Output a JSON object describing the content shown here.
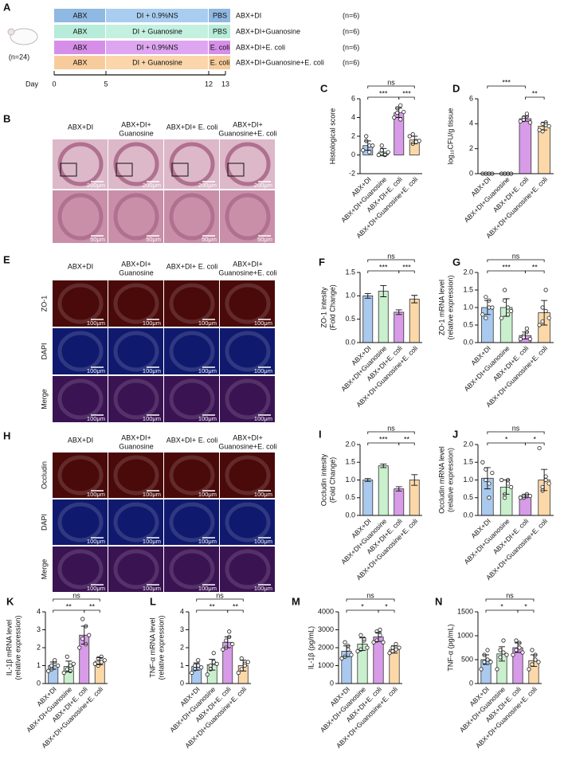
{
  "panel_a": {
    "label": "A",
    "cohort": "(n=24)",
    "axis_label": "Day",
    "days": [
      0,
      5,
      12,
      13
    ],
    "rows": [
      {
        "segments": [
          "ABX",
          "DI + 0.9%NS",
          "PBS"
        ],
        "group": "ABX+DI",
        "n": "(n=6)"
      },
      {
        "segments": [
          "ABX",
          "DI + Guanosine",
          "PBS"
        ],
        "group": "ABX+DI+Guanosine",
        "n": "(n=6)"
      },
      {
        "segments": [
          "ABX",
          "DI + 0.9%NS",
          "E. coli"
        ],
        "group": "ABX+DI+E. coli",
        "n": "(n=6)"
      },
      {
        "segments": [
          "ABX",
          "DI + Guanosine",
          "E. coli"
        ],
        "group": "ABX+DI+Guanosine+E. coli",
        "n": "(n=6)"
      }
    ]
  },
  "image_panels": [
    {
      "label": "B",
      "columns": [
        [
          "ABX+DI"
        ],
        [
          "ABX+DI+",
          "Guanosine"
        ],
        [
          "ABX+DI+ E. coli"
        ],
        [
          "ABX+DI+",
          "Guanosine+E. coli"
        ]
      ],
      "rows": [],
      "scale_bars": [
        "200μm",
        "50μm"
      ]
    },
    {
      "label": "E",
      "columns": [
        [
          "ABX+DI"
        ],
        [
          "ABX+DI+",
          "Guanosine"
        ],
        [
          "ABX+DI+ E. coli"
        ],
        [
          "ABX+DI+",
          "Guanosine+E. coli"
        ]
      ],
      "rows": [
        "ZO-1",
        "DAPI",
        "Merge"
      ],
      "scale_bars": [
        "100μm",
        "100μm",
        "100μm"
      ]
    },
    {
      "label": "H",
      "columns": [
        [
          "ABX+DI"
        ],
        [
          "ABX+DI+",
          "Guanosine"
        ],
        [
          "ABX+DI+ E. coli"
        ],
        [
          "ABX+DI+",
          "Guanosine+E. coli"
        ]
      ],
      "rows": [
        "Occludin",
        "DAPI",
        "Merge"
      ],
      "scale_bars": [
        "100μm",
        "100μm",
        "100μm"
      ]
    }
  ],
  "chart_data": [
    {
      "type": "bar",
      "label": "C",
      "ylabel": [
        "Histological score"
      ],
      "ylim": [
        -2,
        6
      ],
      "yticks": [
        -2,
        0,
        2,
        4,
        6
      ],
      "categories": [
        "ABX+DI",
        "ABX+DI+Guanosine",
        "ABX+DI+E. coli",
        "ABX+DI+Guanosine+E. coli"
      ],
      "colors": [
        "#a9c9ee",
        "#c9efcc",
        "#d79be8",
        "#fcd8a8"
      ],
      "values": [
        1.0,
        0.3,
        4.5,
        1.6
      ],
      "errors": [
        0.5,
        0.4,
        0.5,
        0.4
      ],
      "points": [
        [
          0.5,
          1.5,
          1.0,
          2.0,
          0.3,
          1.0
        ],
        [
          0,
          0.5,
          0,
          1.0,
          0,
          0.3
        ],
        [
          4.0,
          5.0,
          5.3,
          4.5,
          3.8,
          4.6
        ],
        [
          2.0,
          1.2,
          1.5,
          2.2,
          1.4,
          1.5
        ]
      ],
      "comparisons": [
        {
          "between": [
            "ABX+DI",
            "ABX+DI+Guanosine+E. coli"
          ],
          "label": "ns"
        },
        {
          "between": [
            "ABX+DI",
            "ABX+DI+E. coli"
          ],
          "label": "***"
        },
        {
          "between": [
            "ABX+DI+E. coli",
            "ABX+DI+Guanosine+E. coli"
          ],
          "label": "***"
        }
      ]
    },
    {
      "type": "bar",
      "label": "D",
      "ylabel": [
        "log₁₀CFU/g tissue"
      ],
      "ylim": [
        0,
        6
      ],
      "yticks": [
        0,
        2,
        4,
        6
      ],
      "categories": [
        "ABX+DI",
        "ABX+DI+Guanosine",
        "ABX+DI+E. coli",
        "ABX+DI+Guanosine+E. coli"
      ],
      "colors": [
        "#a9c9ee",
        "#c9efcc",
        "#d79be8",
        "#fcd8a8"
      ],
      "values": [
        0,
        0,
        4.4,
        3.8
      ],
      "errors": [
        0,
        0,
        0.2,
        0.3
      ],
      "points": [
        [
          0,
          0,
          0,
          0,
          0,
          0
        ],
        [
          0,
          0,
          0,
          0,
          0,
          0
        ],
        [
          4.2,
          4.5,
          4.6,
          4.3,
          4.8,
          4.1
        ],
        [
          3.5,
          4.0,
          3.9,
          3.4,
          4.1,
          3.8
        ]
      ],
      "comparisons": [
        {
          "between": [
            "ABX+DI",
            "ABX+DI+E. coli"
          ],
          "label": "***"
        },
        {
          "between": [
            "ABX+DI+E. coli",
            "ABX+DI+Guanosine+E. coli"
          ],
          "label": "**"
        }
      ]
    },
    {
      "type": "bar",
      "label": "F",
      "ylabel": [
        "ZO-1 intesity",
        "(Fold Change)"
      ],
      "ylim": [
        0,
        1.5
      ],
      "yticks": [
        {
          "value": 0,
          "label": "0.0"
        },
        0.5,
        {
          "value": 1,
          "label": "1.0"
        },
        1.5
      ],
      "categories": [
        "ABX+DI",
        "ABX+DI+Guanosine",
        "ABX+DI+E. coli",
        "ABX+DI+Guanosine+E. coli"
      ],
      "colors": [
        "#a9c9ee",
        "#c9efcc",
        "#d79be8",
        "#fcd8a8"
      ],
      "values": [
        1.0,
        1.1,
        0.65,
        0.93
      ],
      "errors": [
        0.05,
        0.12,
        0.05,
        0.08
      ],
      "comparisons": [
        {
          "between": [
            "ABX+DI",
            "ABX+DI+Guanosine+E. coli"
          ],
          "label": "ns"
        },
        {
          "between": [
            "ABX+DI",
            "ABX+DI+E. coli"
          ],
          "label": "***"
        },
        {
          "between": [
            "ABX+DI+E. coli",
            "ABX+DI+Guanosine+E. coli"
          ],
          "label": "***"
        }
      ]
    },
    {
      "type": "bar",
      "label": "G",
      "ylabel": [
        "ZO-1 mRNA  level",
        "(relative expression)"
      ],
      "ylim": [
        0,
        2
      ],
      "yticks": [
        {
          "value": 0,
          "label": "0.0"
        },
        0.5,
        {
          "value": 1,
          "label": "1.0"
        },
        1.5,
        {
          "value": 2,
          "label": "2.0"
        }
      ],
      "categories": [
        "ABX+DI",
        "ABX+DI+Guanosine",
        "ABX+DI+E. coli",
        "ABX+DI+Guanosine+E. coli"
      ],
      "colors": [
        "#a9c9ee",
        "#c9efcc",
        "#d79be8",
        "#fcd8a8"
      ],
      "values": [
        1.0,
        1.0,
        0.2,
        0.85
      ],
      "errors": [
        0.2,
        0.25,
        0.1,
        0.35
      ],
      "points": [
        [
          0.8,
          1.3,
          1.0,
          0.7,
          1.2,
          1.0
        ],
        [
          0.7,
          1.5,
          1.0,
          1.2,
          0.8,
          0.9
        ],
        [
          0.1,
          0.2,
          0.3,
          0.15,
          0.4,
          0.1
        ],
        [
          0.5,
          1.0,
          1.5,
          0.6,
          0.9,
          0.7
        ]
      ],
      "comparisons": [
        {
          "between": [
            "ABX+DI",
            "ABX+DI+Guanosine+E. coli"
          ],
          "label": "ns"
        },
        {
          "between": [
            "ABX+DI",
            "ABX+DI+E. coli"
          ],
          "label": "***"
        },
        {
          "between": [
            "ABX+DI+E. coli",
            "ABX+DI+Guanosine+E. coli"
          ],
          "label": "**"
        }
      ]
    },
    {
      "type": "bar",
      "label": "I",
      "ylabel": [
        "Occludin intesity",
        "(Fold Change)"
      ],
      "ylim": [
        0,
        2
      ],
      "yticks": [
        {
          "value": 0,
          "label": "0.0"
        },
        0.5,
        {
          "value": 1,
          "label": "1.0"
        },
        1.5,
        {
          "value": 2,
          "label": "2.0"
        }
      ],
      "categories": [
        "ABX+DI",
        "ABX+DI+Guanosine",
        "ABX+DI+E. coli",
        "ABX+DI+Guanosine+E. coli"
      ],
      "colors": [
        "#a9c9ee",
        "#c9efcc",
        "#d79be8",
        "#fcd8a8"
      ],
      "values": [
        1.0,
        1.4,
        0.75,
        1.0
      ],
      "errors": [
        0.04,
        0.05,
        0.06,
        0.15
      ],
      "comparisons": [
        {
          "between": [
            "ABX+DI",
            "ABX+DI+Guanosine+E. coli"
          ],
          "label": "ns"
        },
        {
          "between": [
            "ABX+DI",
            "ABX+DI+E. coli"
          ],
          "label": "***"
        },
        {
          "between": [
            "ABX+DI+E. coli",
            "ABX+DI+Guanosine+E. coli"
          ],
          "label": "**"
        }
      ]
    },
    {
      "type": "bar",
      "label": "J",
      "ylabel": [
        "Occludin mRNA  level",
        "(relative expression)"
      ],
      "ylim": [
        0,
        2
      ],
      "yticks": [
        {
          "value": 0,
          "label": "0.0"
        },
        0.5,
        {
          "value": 1,
          "label": "1.0"
        },
        1.5,
        {
          "value": 2,
          "label": "2.0"
        }
      ],
      "categories": [
        "ABX+DI",
        "ABX+DI+Guanosine",
        "ABX+DI+E. coli",
        "ABX+DI+Guanosine+E. coli"
      ],
      "colors": [
        "#a9c9ee",
        "#c9efcc",
        "#d79be8",
        "#fcd8a8"
      ],
      "values": [
        1.05,
        0.8,
        0.55,
        1.0
      ],
      "errors": [
        0.3,
        0.2,
        0.05,
        0.3
      ],
      "points": [
        [
          1.5,
          1.0,
          0.5,
          1.3,
          0.9,
          1.2
        ],
        [
          1.0,
          0.6,
          0.9,
          0.5,
          1.0,
          0.8
        ],
        [
          0.5,
          0.55,
          0.6,
          0.5,
          0.6,
          0.55
        ],
        [
          1.9,
          0.8,
          1.0,
          0.7,
          1.1,
          0.9
        ]
      ],
      "comparisons": [
        {
          "between": [
            "ABX+DI",
            "ABX+DI+Guanosine+E. coli"
          ],
          "label": "ns"
        },
        {
          "between": [
            "ABX+DI",
            "ABX+DI+E. coli"
          ],
          "label": "*"
        },
        {
          "between": [
            "ABX+DI+E. coli",
            "ABX+DI+Guanosine+E. coli"
          ],
          "label": "*"
        }
      ]
    },
    {
      "type": "bar",
      "label": "K",
      "ylabel": [
        "IL-1β mRNA level",
        "(relative expression)"
      ],
      "ylim": [
        0,
        4
      ],
      "yticks": [
        0,
        1,
        2,
        3,
        4
      ],
      "categories": [
        "ABX+DI",
        "ABX+DI+Guanosine",
        "ABX+DI+E. coli",
        "ABX+DI+Guanosine+E. coli"
      ],
      "colors": [
        "#a9c9ee",
        "#c9efcc",
        "#d79be8",
        "#fcd8a8"
      ],
      "values": [
        1.0,
        0.95,
        2.7,
        1.25
      ],
      "errors": [
        0.2,
        0.3,
        0.5,
        0.2
      ],
      "points": [
        [
          0.7,
          1.0,
          1.2,
          0.8,
          1.3,
          1.0
        ],
        [
          0.6,
          0.8,
          1.0,
          1.5,
          0.7,
          1.1
        ],
        [
          2.0,
          2.5,
          3.2,
          3.6,
          2.2,
          2.7
        ],
        [
          1.1,
          1.4,
          1.5,
          1.0,
          1.2,
          1.3
        ]
      ],
      "comparisons": [
        {
          "between": [
            "ABX+DI",
            "ABX+DI+Guanosine+E. coli"
          ],
          "label": "ns"
        },
        {
          "between": [
            "ABX+DI",
            "ABX+DI+E. coli"
          ],
          "label": "**"
        },
        {
          "between": [
            "ABX+DI+E. coli",
            "ABX+DI+Guanosine+E. coli"
          ],
          "label": "**"
        }
      ]
    },
    {
      "type": "bar",
      "label": "L",
      "ylabel": [
        "TNF-α mRNA  level",
        "(relative expression)"
      ],
      "ylim": [
        0,
        4
      ],
      "yticks": [
        0,
        1,
        2,
        3,
        4
      ],
      "categories": [
        "ABX+DI",
        "ABX+DI+Guanosine",
        "ABX+DI+E. coli",
        "ABX+DI+Guanosine+E. coli"
      ],
      "colors": [
        "#a9c9ee",
        "#c9efcc",
        "#d79be8",
        "#fcd8a8"
      ],
      "values": [
        0.95,
        1.05,
        2.3,
        1.0
      ],
      "errors": [
        0.2,
        0.3,
        0.3,
        0.3
      ],
      "points": [
        [
          0.6,
          1.0,
          1.3,
          0.8,
          1.0,
          0.9
        ],
        [
          0.5,
          1.0,
          1.7,
          0.8,
          1.2,
          1.1
        ],
        [
          1.9,
          2.4,
          2.6,
          2.0,
          2.9,
          2.2
        ],
        [
          0.6,
          1.4,
          1.1,
          0.8,
          1.0,
          1.2
        ]
      ],
      "comparisons": [
        {
          "between": [
            "ABX+DI",
            "ABX+DI+Guanosine+E. coli"
          ],
          "label": "ns"
        },
        {
          "between": [
            "ABX+DI",
            "ABX+DI+E. coli"
          ],
          "label": "**"
        },
        {
          "between": [
            "ABX+DI+E. coli",
            "ABX+DI+Guanosine+E. coli"
          ],
          "label": "**"
        }
      ]
    },
    {
      "type": "bar",
      "label": "M",
      "ylabel": [
        "IL-1β (pg/mL)"
      ],
      "ylim": [
        0,
        4000
      ],
      "yticks": [
        0,
        1000,
        2000,
        3000,
        4000
      ],
      "categories": [
        "ABX+DI",
        "ABX+DI+Guanosine",
        "ABX+DI+E. coli",
        "ABX+DI+Guanosine+E. coli"
      ],
      "colors": [
        "#a9c9ee",
        "#c9efcc",
        "#d79be8",
        "#fcd8a8"
      ],
      "values": [
        1800,
        2200,
        2600,
        1900
      ],
      "errors": [
        300,
        350,
        250,
        200
      ],
      "points": [
        [
          1400,
          2300,
          1900,
          1500,
          2100,
          1600
        ],
        [
          1800,
          2700,
          2400,
          1900,
          2500,
          2000
        ],
        [
          2300,
          2900,
          3000,
          2400,
          2700,
          2300
        ],
        [
          1700,
          2000,
          2200,
          1800,
          1900,
          2000
        ]
      ],
      "comparisons": [
        {
          "between": [
            "ABX+DI",
            "ABX+DI+Guanosine+E. coli"
          ],
          "label": "ns"
        },
        {
          "between": [
            "ABX+DI",
            "ABX+DI+E. coli"
          ],
          "label": "*"
        },
        {
          "between": [
            "ABX+DI+E. coli",
            "ABX+DI+Guanosine+E. coli"
          ],
          "label": "*"
        }
      ]
    },
    {
      "type": "bar",
      "label": "N",
      "ylabel": [
        "TNF-α (pg/mL)"
      ],
      "ylim": [
        0,
        1500
      ],
      "yticks": [
        0,
        500,
        1000,
        1500
      ],
      "categories": [
        "ABX+DI",
        "ABX+DI+Guanosine",
        "ABX+DI+E. coli",
        "ABX+DI+Guanosine+E. coli"
      ],
      "colors": [
        "#a9c9ee",
        "#c9efcc",
        "#d79be8",
        "#fcd8a8"
      ],
      "values": [
        500,
        620,
        750,
        480
      ],
      "errors": [
        100,
        150,
        100,
        120
      ],
      "points": [
        [
          300,
          600,
          700,
          450,
          500,
          450
        ],
        [
          300,
          700,
          900,
          550,
          650,
          600
        ],
        [
          600,
          900,
          850,
          700,
          750,
          650
        ],
        [
          300,
          700,
          500,
          400,
          600,
          450
        ]
      ],
      "comparisons": [
        {
          "between": [
            "ABX+DI",
            "ABX+DI+Guanosine+E. coli"
          ],
          "label": "ns"
        },
        {
          "between": [
            "ABX+DI",
            "ABX+DI+E. coli"
          ],
          "label": "*"
        },
        {
          "between": [
            "ABX+DI+E. coli",
            "ABX+DI+Guanosine+E. coli"
          ],
          "label": "*"
        }
      ]
    }
  ]
}
